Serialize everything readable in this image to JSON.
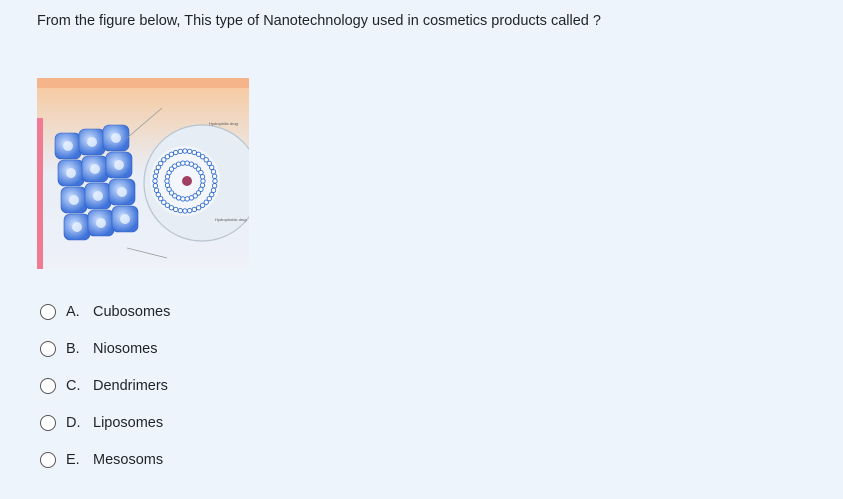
{
  "question": "From the figure below, This type of Nanotechnology used in cosmetics products called ?",
  "figure": {
    "labels": [
      "Hydrophilic drug",
      "Hydrophobic drug"
    ]
  },
  "options": [
    {
      "letter": "A.",
      "text": "Cubosomes"
    },
    {
      "letter": "B.",
      "text": "Niosomes"
    },
    {
      "letter": "C.",
      "text": "Dendrimers"
    },
    {
      "letter": "D.",
      "text": "Liposomes"
    },
    {
      "letter": "E.",
      "text": "Mesosoms"
    }
  ]
}
